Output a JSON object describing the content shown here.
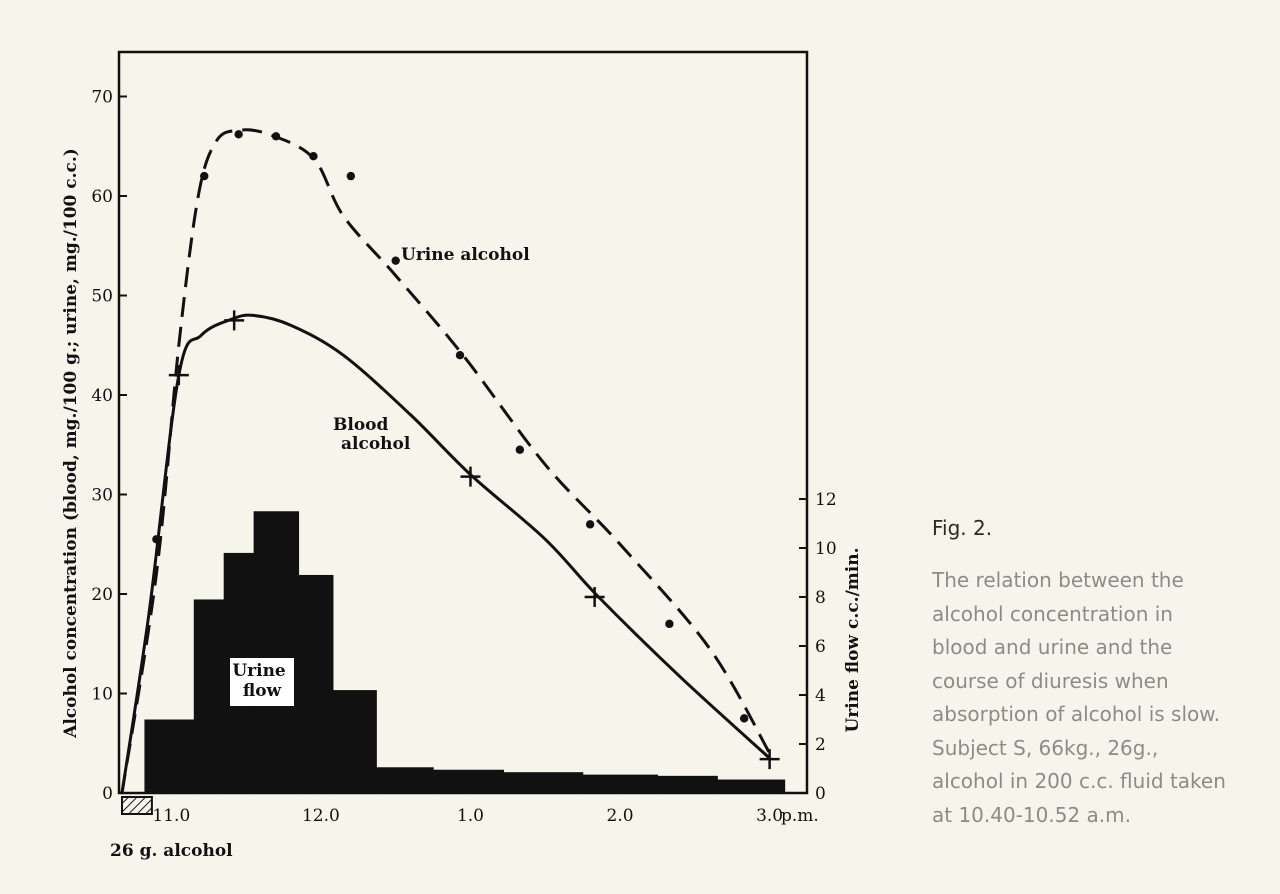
{
  "figure_label": "Fig. 2.",
  "caption": "The relation between the alcohol concentration in blood and urine and the course of diuresis when absorption of alcohol is slow. Subject S, 66kg., 26g., alcohol in 200 c.c. fluid taken at 10.40-10.52 a.m.",
  "colors": {
    "ink": "#111111",
    "background": "#f6f5ec",
    "caption_text": "#8c8c86"
  },
  "chart_data": {
    "type": "line",
    "ylabel": "Alcohol concentration (blood, mg./100 g.; urine, mg./100 c.c.)",
    "y2label": "Urine flow c.c./min.",
    "xlabel": "",
    "x_units": "hours after 10.40 a.m. (clock time 10.40 a.m. – 3.15 p.m.)",
    "xlim": [
      10.65,
      15.25
    ],
    "ylim": [
      0,
      75
    ],
    "y2lim": [
      0,
      12
    ],
    "x_ticks": [
      {
        "value": 11.0,
        "label": "11.0"
      },
      {
        "value": 12.0,
        "label": "12.0"
      },
      {
        "value": 13.0,
        "label": "1.0"
      },
      {
        "value": 14.0,
        "label": "2.0"
      },
      {
        "value": 15.0,
        "label": "3.0"
      }
    ],
    "x_end_label": "p.m.",
    "y_ticks": [
      0,
      10,
      20,
      30,
      40,
      50,
      60,
      70
    ],
    "y2_ticks": [
      0,
      2,
      4,
      6,
      8,
      10,
      12
    ],
    "dose_label": "26 g. alcohol",
    "dose_interval": [
      10.67,
      10.87
    ],
    "series": [
      {
        "name": "Urine alcohol",
        "style": "dashed",
        "marker": "dot",
        "curve": [
          [
            10.67,
            0
          ],
          [
            10.9,
            22
          ],
          [
            11.05,
            45
          ],
          [
            11.18,
            60
          ],
          [
            11.3,
            65.5
          ],
          [
            11.45,
            66.6
          ],
          [
            11.65,
            66.2
          ],
          [
            11.95,
            63.8
          ],
          [
            12.15,
            58
          ],
          [
            12.5,
            52
          ],
          [
            12.95,
            44
          ],
          [
            13.5,
            33
          ],
          [
            14.0,
            25
          ],
          [
            14.6,
            14.5
          ],
          [
            15.0,
            4
          ]
        ],
        "points": [
          [
            10.9,
            25.5
          ],
          [
            11.22,
            62
          ],
          [
            11.45,
            66.2
          ],
          [
            11.7,
            66
          ],
          [
            11.95,
            64
          ],
          [
            12.2,
            62
          ],
          [
            12.5,
            53.5
          ],
          [
            12.93,
            44
          ],
          [
            13.33,
            34.5
          ],
          [
            13.8,
            27
          ],
          [
            14.33,
            17
          ],
          [
            14.83,
            7.5
          ]
        ]
      },
      {
        "name": "Blood alcohol",
        "style": "solid",
        "marker": "plus",
        "curve": [
          [
            10.67,
            0
          ],
          [
            10.85,
            18
          ],
          [
            11.05,
            42
          ],
          [
            11.2,
            46
          ],
          [
            11.4,
            47.6
          ],
          [
            11.55,
            48
          ],
          [
            11.8,
            47
          ],
          [
            12.15,
            44
          ],
          [
            12.6,
            38
          ],
          [
            13.0,
            32
          ],
          [
            13.5,
            25.5
          ],
          [
            13.85,
            19.8
          ],
          [
            14.4,
            11.7
          ],
          [
            15.0,
            3.5
          ]
        ],
        "points": [
          [
            11.05,
            42
          ],
          [
            11.42,
            47.5
          ],
          [
            13.0,
            31.8
          ],
          [
            13.83,
            19.7
          ],
          [
            15.0,
            3.4
          ]
        ]
      }
    ],
    "bars": {
      "name": "Urine flow",
      "axis": "y2",
      "intervals": [
        {
          "x0": 10.82,
          "x1": 11.15,
          "value": 3.0
        },
        {
          "x0": 11.15,
          "x1": 11.35,
          "value": 7.9
        },
        {
          "x0": 11.35,
          "x1": 11.55,
          "value": 9.8
        },
        {
          "x0": 11.55,
          "x1": 11.85,
          "value": 11.5
        },
        {
          "x0": 11.85,
          "x1": 12.08,
          "value": 8.9
        },
        {
          "x0": 12.08,
          "x1": 12.37,
          "value": 4.2
        },
        {
          "x0": 12.37,
          "x1": 12.75,
          "value": 1.05
        },
        {
          "x0": 12.75,
          "x1": 13.22,
          "value": 0.95
        },
        {
          "x0": 13.22,
          "x1": 13.75,
          "value": 0.85
        },
        {
          "x0": 13.75,
          "x1": 14.25,
          "value": 0.75
        },
        {
          "x0": 14.25,
          "x1": 14.65,
          "value": 0.7
        },
        {
          "x0": 14.65,
          "x1": 15.1,
          "value": 0.55
        }
      ]
    }
  }
}
